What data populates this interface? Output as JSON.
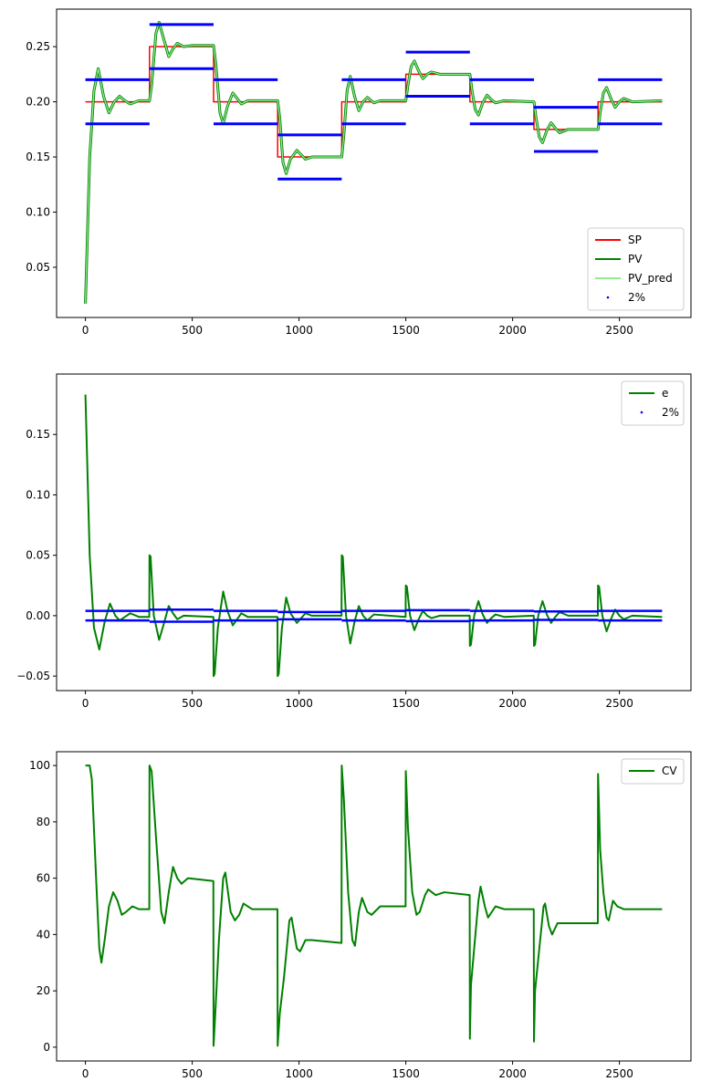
{
  "chart_data": [
    {
      "type": "line",
      "title": "",
      "xlabel": "",
      "ylabel": "",
      "xlim": [
        -135,
        2835
      ],
      "ylim": [
        0.0045,
        0.284
      ],
      "xticks": [
        0,
        500,
        1000,
        1500,
        2000,
        2500
      ],
      "yticks": [
        0.05,
        0.1,
        0.15,
        0.2,
        0.25
      ],
      "ytick_labels": [
        "0.05",
        "0.10",
        "0.15",
        "0.20",
        "0.25"
      ],
      "legend_position": "lower-right",
      "legend": [
        "SP",
        "PV",
        "PV_pred",
        "2%"
      ],
      "colors": {
        "SP": "#ff0000",
        "PV": "#008000",
        "PV_pred": "#90ee90",
        "band": "#0000ff"
      },
      "setpoint_segments": [
        {
          "start": 0,
          "end": 300,
          "sp": 0.2
        },
        {
          "start": 300,
          "end": 600,
          "sp": 0.25
        },
        {
          "start": 600,
          "end": 900,
          "sp": 0.2
        },
        {
          "start": 900,
          "end": 1200,
          "sp": 0.15
        },
        {
          "start": 1200,
          "end": 1500,
          "sp": 0.2
        },
        {
          "start": 1500,
          "end": 1800,
          "sp": 0.225
        },
        {
          "start": 1800,
          "end": 2100,
          "sp": 0.2
        },
        {
          "start": 2100,
          "end": 2400,
          "sp": 0.175
        },
        {
          "start": 2400,
          "end": 2700,
          "sp": 0.2
        }
      ],
      "band_offset": 0.02,
      "pv": [
        [
          0,
          0.017
        ],
        [
          20,
          0.15
        ],
        [
          40,
          0.21
        ],
        [
          60,
          0.23
        ],
        [
          85,
          0.205
        ],
        [
          110,
          0.19
        ],
        [
          135,
          0.2
        ],
        [
          160,
          0.205
        ],
        [
          185,
          0.201
        ],
        [
          210,
          0.198
        ],
        [
          250,
          0.201
        ],
        [
          300,
          0.201
        ],
        [
          310,
          0.215
        ],
        [
          330,
          0.262
        ],
        [
          345,
          0.272
        ],
        [
          365,
          0.258
        ],
        [
          390,
          0.241
        ],
        [
          410,
          0.248
        ],
        [
          430,
          0.253
        ],
        [
          460,
          0.25
        ],
        [
          500,
          0.251
        ],
        [
          600,
          0.251
        ],
        [
          610,
          0.235
        ],
        [
          630,
          0.19
        ],
        [
          645,
          0.18
        ],
        [
          665,
          0.196
        ],
        [
          690,
          0.208
        ],
        [
          710,
          0.203
        ],
        [
          730,
          0.198
        ],
        [
          760,
          0.201
        ],
        [
          900,
          0.201
        ],
        [
          910,
          0.185
        ],
        [
          925,
          0.145
        ],
        [
          940,
          0.135
        ],
        [
          960,
          0.148
        ],
        [
          990,
          0.156
        ],
        [
          1010,
          0.152
        ],
        [
          1030,
          0.148
        ],
        [
          1060,
          0.15
        ],
        [
          1200,
          0.15
        ],
        [
          1210,
          0.17
        ],
        [
          1225,
          0.21
        ],
        [
          1240,
          0.223
        ],
        [
          1260,
          0.205
        ],
        [
          1280,
          0.192
        ],
        [
          1300,
          0.2
        ],
        [
          1320,
          0.204
        ],
        [
          1350,
          0.199
        ],
        [
          1380,
          0.201
        ],
        [
          1500,
          0.201
        ],
        [
          1510,
          0.215
        ],
        [
          1525,
          0.232
        ],
        [
          1540,
          0.237
        ],
        [
          1560,
          0.228
        ],
        [
          1580,
          0.221
        ],
        [
          1600,
          0.225
        ],
        [
          1620,
          0.227
        ],
        [
          1660,
          0.225
        ],
        [
          1800,
          0.225
        ],
        [
          1810,
          0.21
        ],
        [
          1825,
          0.193
        ],
        [
          1840,
          0.188
        ],
        [
          1860,
          0.199
        ],
        [
          1880,
          0.206
        ],
        [
          1900,
          0.202
        ],
        [
          1920,
          0.199
        ],
        [
          1960,
          0.201
        ],
        [
          2100,
          0.2
        ],
        [
          2110,
          0.185
        ],
        [
          2125,
          0.168
        ],
        [
          2140,
          0.163
        ],
        [
          2160,
          0.174
        ],
        [
          2180,
          0.181
        ],
        [
          2200,
          0.176
        ],
        [
          2220,
          0.172
        ],
        [
          2260,
          0.175
        ],
        [
          2400,
          0.175
        ],
        [
          2410,
          0.19
        ],
        [
          2425,
          0.208
        ],
        [
          2440,
          0.213
        ],
        [
          2460,
          0.203
        ],
        [
          2480,
          0.195
        ],
        [
          2500,
          0.2
        ],
        [
          2520,
          0.203
        ],
        [
          2560,
          0.2
        ],
        [
          2700,
          0.201
        ]
      ]
    },
    {
      "type": "line",
      "title": "",
      "xlabel": "",
      "ylabel": "",
      "xlim": [
        -135,
        2835
      ],
      "ylim": [
        -0.062,
        0.2
      ],
      "xticks": [
        0,
        500,
        1000,
        1500,
        2000,
        2500
      ],
      "yticks": [
        -0.05,
        0.0,
        0.05,
        0.1,
        0.15
      ],
      "ytick_labels": [
        "−0.05",
        "0.00",
        "0.05",
        "0.10",
        "0.15"
      ],
      "legend_position": "upper-right",
      "legend": [
        "e",
        "2%"
      ],
      "colors": {
        "e": "#008000",
        "band": "#0000ff"
      },
      "band_percent": 2,
      "e": [
        [
          0,
          0.183
        ],
        [
          20,
          0.05
        ],
        [
          40,
          -0.01
        ],
        [
          65,
          -0.028
        ],
        [
          90,
          -0.005
        ],
        [
          115,
          0.01
        ],
        [
          140,
          0.0
        ],
        [
          160,
          -0.004
        ],
        [
          185,
          -0.001
        ],
        [
          210,
          0.002
        ],
        [
          250,
          -0.001
        ],
        [
          299,
          -0.001
        ],
        [
          300,
          0.05
        ],
        [
          305,
          0.049
        ],
        [
          320,
          0.0
        ],
        [
          345,
          -0.02
        ],
        [
          365,
          -0.008
        ],
        [
          390,
          0.008
        ],
        [
          410,
          0.002
        ],
        [
          430,
          -0.003
        ],
        [
          460,
          0.0
        ],
        [
          599,
          -0.001
        ],
        [
          600,
          -0.05
        ],
        [
          605,
          -0.048
        ],
        [
          620,
          -0.01
        ],
        [
          645,
          0.02
        ],
        [
          665,
          0.004
        ],
        [
          690,
          -0.008
        ],
        [
          710,
          -0.003
        ],
        [
          730,
          0.002
        ],
        [
          760,
          -0.001
        ],
        [
          899,
          -0.001
        ],
        [
          900,
          -0.05
        ],
        [
          905,
          -0.048
        ],
        [
          920,
          -0.01
        ],
        [
          940,
          0.015
        ],
        [
          960,
          0.002
        ],
        [
          990,
          -0.006
        ],
        [
          1010,
          -0.002
        ],
        [
          1030,
          0.002
        ],
        [
          1060,
          0.0
        ],
        [
          1199,
          0.0
        ],
        [
          1200,
          0.05
        ],
        [
          1205,
          0.049
        ],
        [
          1220,
          0.0
        ],
        [
          1240,
          -0.023
        ],
        [
          1260,
          -0.005
        ],
        [
          1280,
          0.008
        ],
        [
          1300,
          0.0
        ],
        [
          1320,
          -0.004
        ],
        [
          1350,
          0.001
        ],
        [
          1499,
          -0.001
        ],
        [
          1500,
          0.025
        ],
        [
          1505,
          0.024
        ],
        [
          1520,
          0.0
        ],
        [
          1540,
          -0.012
        ],
        [
          1560,
          -0.003
        ],
        [
          1580,
          0.004
        ],
        [
          1600,
          0.0
        ],
        [
          1620,
          -0.002
        ],
        [
          1660,
          0.0
        ],
        [
          1799,
          0.0
        ],
        [
          1800,
          -0.025
        ],
        [
          1805,
          -0.024
        ],
        [
          1820,
          0.0
        ],
        [
          1840,
          0.012
        ],
        [
          1860,
          0.001
        ],
        [
          1880,
          -0.006
        ],
        [
          1900,
          -0.002
        ],
        [
          1920,
          0.001
        ],
        [
          1960,
          -0.001
        ],
        [
          2099,
          0.0
        ],
        [
          2100,
          -0.025
        ],
        [
          2105,
          -0.024
        ],
        [
          2120,
          0.0
        ],
        [
          2140,
          0.012
        ],
        [
          2160,
          0.001
        ],
        [
          2180,
          -0.006
        ],
        [
          2200,
          -0.001
        ],
        [
          2220,
          0.003
        ],
        [
          2260,
          0.0
        ],
        [
          2399,
          0.0
        ],
        [
          2400,
          0.025
        ],
        [
          2405,
          0.024
        ],
        [
          2420,
          0.0
        ],
        [
          2440,
          -0.013
        ],
        [
          2460,
          -0.003
        ],
        [
          2480,
          0.005
        ],
        [
          2500,
          0.0
        ],
        [
          2520,
          -0.003
        ],
        [
          2560,
          0.0
        ],
        [
          2700,
          -0.001
        ]
      ]
    },
    {
      "type": "line",
      "title": "",
      "xlabel": "",
      "ylabel": "",
      "xlim": [
        -135,
        2835
      ],
      "ylim": [
        -4.9,
        104.9
      ],
      "xticks": [
        0,
        500,
        1000,
        1500,
        2000,
        2500
      ],
      "yticks": [
        0,
        20,
        40,
        60,
        80,
        100
      ],
      "ytick_labels": [
        "0",
        "20",
        "40",
        "60",
        "80",
        "100"
      ],
      "legend_position": "upper-right",
      "legend": [
        "CV"
      ],
      "colors": {
        "CV": "#008000"
      },
      "cv": [
        [
          0,
          100
        ],
        [
          20,
          100
        ],
        [
          30,
          95
        ],
        [
          50,
          60
        ],
        [
          65,
          35
        ],
        [
          75,
          30
        ],
        [
          90,
          38
        ],
        [
          110,
          50
        ],
        [
          130,
          55
        ],
        [
          150,
          52
        ],
        [
          170,
          47
        ],
        [
          190,
          48
        ],
        [
          220,
          50
        ],
        [
          250,
          49
        ],
        [
          299,
          49
        ],
        [
          300,
          100
        ],
        [
          310,
          98
        ],
        [
          330,
          75
        ],
        [
          355,
          48
        ],
        [
          370,
          44
        ],
        [
          390,
          55
        ],
        [
          410,
          64
        ],
        [
          430,
          60
        ],
        [
          450,
          58
        ],
        [
          480,
          60
        ],
        [
          599,
          59
        ],
        [
          600,
          0.5
        ],
        [
          610,
          15
        ],
        [
          625,
          38
        ],
        [
          645,
          60
        ],
        [
          655,
          62
        ],
        [
          680,
          48
        ],
        [
          700,
          45
        ],
        [
          720,
          47
        ],
        [
          740,
          51
        ],
        [
          780,
          49
        ],
        [
          899,
          49
        ],
        [
          900,
          0.5
        ],
        [
          910,
          12
        ],
        [
          930,
          25
        ],
        [
          955,
          45
        ],
        [
          965,
          46
        ],
        [
          990,
          35
        ],
        [
          1005,
          34
        ],
        [
          1030,
          38
        ],
        [
          1060,
          38
        ],
        [
          1199,
          37
        ],
        [
          1200,
          100
        ],
        [
          1210,
          88
        ],
        [
          1230,
          55
        ],
        [
          1250,
          38
        ],
        [
          1262,
          36
        ],
        [
          1280,
          48
        ],
        [
          1295,
          53
        ],
        [
          1320,
          48
        ],
        [
          1340,
          47
        ],
        [
          1380,
          50
        ],
        [
          1499,
          50
        ],
        [
          1500,
          98
        ],
        [
          1510,
          78
        ],
        [
          1530,
          55
        ],
        [
          1550,
          47
        ],
        [
          1565,
          48
        ],
        [
          1590,
          54
        ],
        [
          1605,
          56
        ],
        [
          1640,
          54
        ],
        [
          1680,
          55
        ],
        [
          1799,
          54
        ],
        [
          1800,
          3
        ],
        [
          1805,
          22
        ],
        [
          1820,
          35
        ],
        [
          1840,
          52
        ],
        [
          1850,
          57
        ],
        [
          1870,
          50
        ],
        [
          1885,
          46
        ],
        [
          1920,
          50
        ],
        [
          1960,
          49
        ],
        [
          2099,
          49
        ],
        [
          2100,
          2
        ],
        [
          2105,
          20
        ],
        [
          2125,
          35
        ],
        [
          2145,
          50
        ],
        [
          2152,
          51
        ],
        [
          2170,
          43
        ],
        [
          2185,
          40
        ],
        [
          2210,
          44
        ],
        [
          2260,
          44
        ],
        [
          2399,
          44
        ],
        [
          2400,
          97
        ],
        [
          2410,
          70
        ],
        [
          2425,
          55
        ],
        [
          2440,
          46
        ],
        [
          2450,
          45
        ],
        [
          2470,
          52
        ],
        [
          2490,
          50
        ],
        [
          2520,
          49
        ],
        [
          2560,
          49
        ],
        [
          2700,
          49
        ]
      ]
    }
  ]
}
